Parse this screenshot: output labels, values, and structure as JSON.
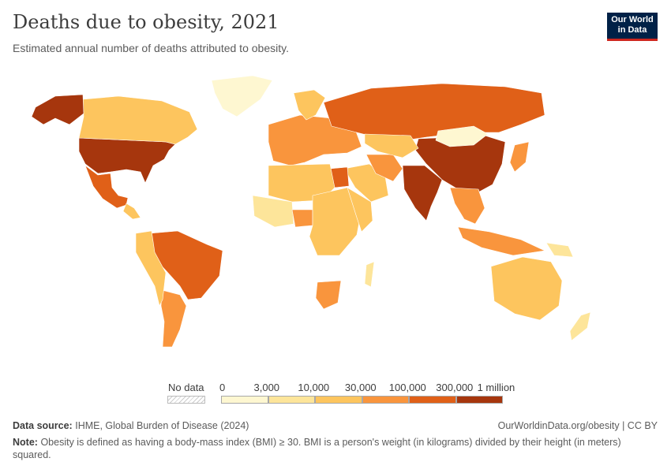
{
  "header": {
    "title": "Deaths due to obesity, 2021",
    "subtitle": "Estimated annual number of deaths attributed to obesity.",
    "logo_line1": "Our World",
    "logo_line2": "in Data"
  },
  "legend": {
    "no_data_label": "No data",
    "ticks": [
      "0",
      "3,000",
      "10,000",
      "30,000",
      "100,000",
      "300,000",
      "1 million"
    ],
    "colors": [
      "#fef7d1",
      "#fde59a",
      "#fdc55e",
      "#f9953d",
      "#e06018",
      "#a6360d"
    ]
  },
  "footer": {
    "source_label": "Data source:",
    "source_text": "IHME, Global Burden of Disease (2024)",
    "url": "OurWorldinData.org/obesity | CC BY",
    "note_label": "Note:",
    "note_text": "Obesity is defined as having a body-mass index (BMI) ≥ 30. BMI is a person's weight (in kilograms) divided by their height (in meters) squared."
  },
  "map_regions": [
    {
      "name": "United States",
      "bin": 5
    },
    {
      "name": "Canada",
      "bin": 2
    },
    {
      "name": "Alaska",
      "bin": 5
    },
    {
      "name": "Greenland",
      "bin": 0
    },
    {
      "name": "Mexico",
      "bin": 4
    },
    {
      "name": "Central America",
      "bin": 2
    },
    {
      "name": "Brazil",
      "bin": 4
    },
    {
      "name": "Argentina",
      "bin": 3
    },
    {
      "name": "South America west",
      "bin": 2
    },
    {
      "name": "Europe",
      "bin": 3
    },
    {
      "name": "Scandinavia",
      "bin": 2
    },
    {
      "name": "Russia",
      "bin": 4
    },
    {
      "name": "China",
      "bin": 5
    },
    {
      "name": "Mongolia",
      "bin": 0
    },
    {
      "name": "India",
      "bin": 5
    },
    {
      "name": "Middle East",
      "bin": 2
    },
    {
      "name": "Iran",
      "bin": 3
    },
    {
      "name": "Central Asia",
      "bin": 2
    },
    {
      "name": "Egypt",
      "bin": 4
    },
    {
      "name": "North Africa",
      "bin": 2
    },
    {
      "name": "West Africa",
      "bin": 1
    },
    {
      "name": "Nigeria",
      "bin": 3
    },
    {
      "name": "Central Africa",
      "bin": 2
    },
    {
      "name": "East Africa",
      "bin": 2
    },
    {
      "name": "South Africa",
      "bin": 3
    },
    {
      "name": "Madagascar",
      "bin": 1
    },
    {
      "name": "Southeast Asia",
      "bin": 3
    },
    {
      "name": "Indonesia",
      "bin": 3
    },
    {
      "name": "Japan",
      "bin": 3
    },
    {
      "name": "Australia",
      "bin": 2
    },
    {
      "name": "New Zealand",
      "bin": 1
    },
    {
      "name": "Papua New Guinea",
      "bin": 1
    }
  ]
}
